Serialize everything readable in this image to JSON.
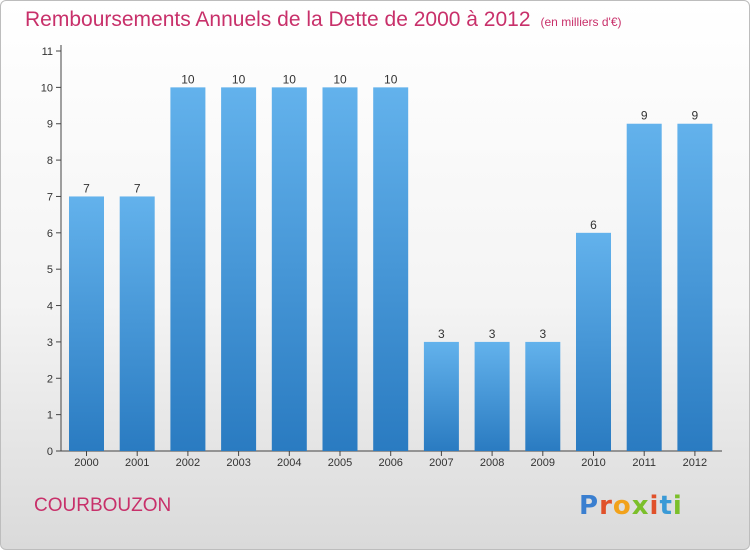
{
  "title": "Remboursements Annuels de la Dette de 2000 à 2012",
  "unit_note": "(en milliers d'€)",
  "place_name": "COURBOUZON",
  "logo": {
    "letters": [
      "P",
      "r",
      "o",
      "x",
      "i",
      "t",
      "i"
    ],
    "colors": [
      "#3a7fd0",
      "#e0512a",
      "#f2a21b",
      "#7bbf2a",
      "#e0512a",
      "#3a9ad6",
      "#7bbf2a"
    ]
  },
  "colors": {
    "bar_top": "#63b2ec",
    "bar_bottom": "#2a7bc1",
    "title": "#c8306a",
    "axis": "#444444"
  },
  "chart_data": {
    "type": "bar",
    "title": "Remboursements Annuels de la Dette de 2000 à 2012",
    "categories": [
      "2000",
      "2001",
      "2002",
      "2003",
      "2004",
      "2005",
      "2006",
      "2007",
      "2008",
      "2009",
      "2010",
      "2011",
      "2012"
    ],
    "values": [
      7,
      7,
      10,
      10,
      10,
      10,
      10,
      3,
      3,
      3,
      6,
      9,
      9
    ],
    "ylim": [
      0,
      11
    ],
    "yticks": [
      0,
      1,
      2,
      3,
      4,
      5,
      6,
      7,
      8,
      9,
      10,
      11
    ],
    "grid": false
  }
}
